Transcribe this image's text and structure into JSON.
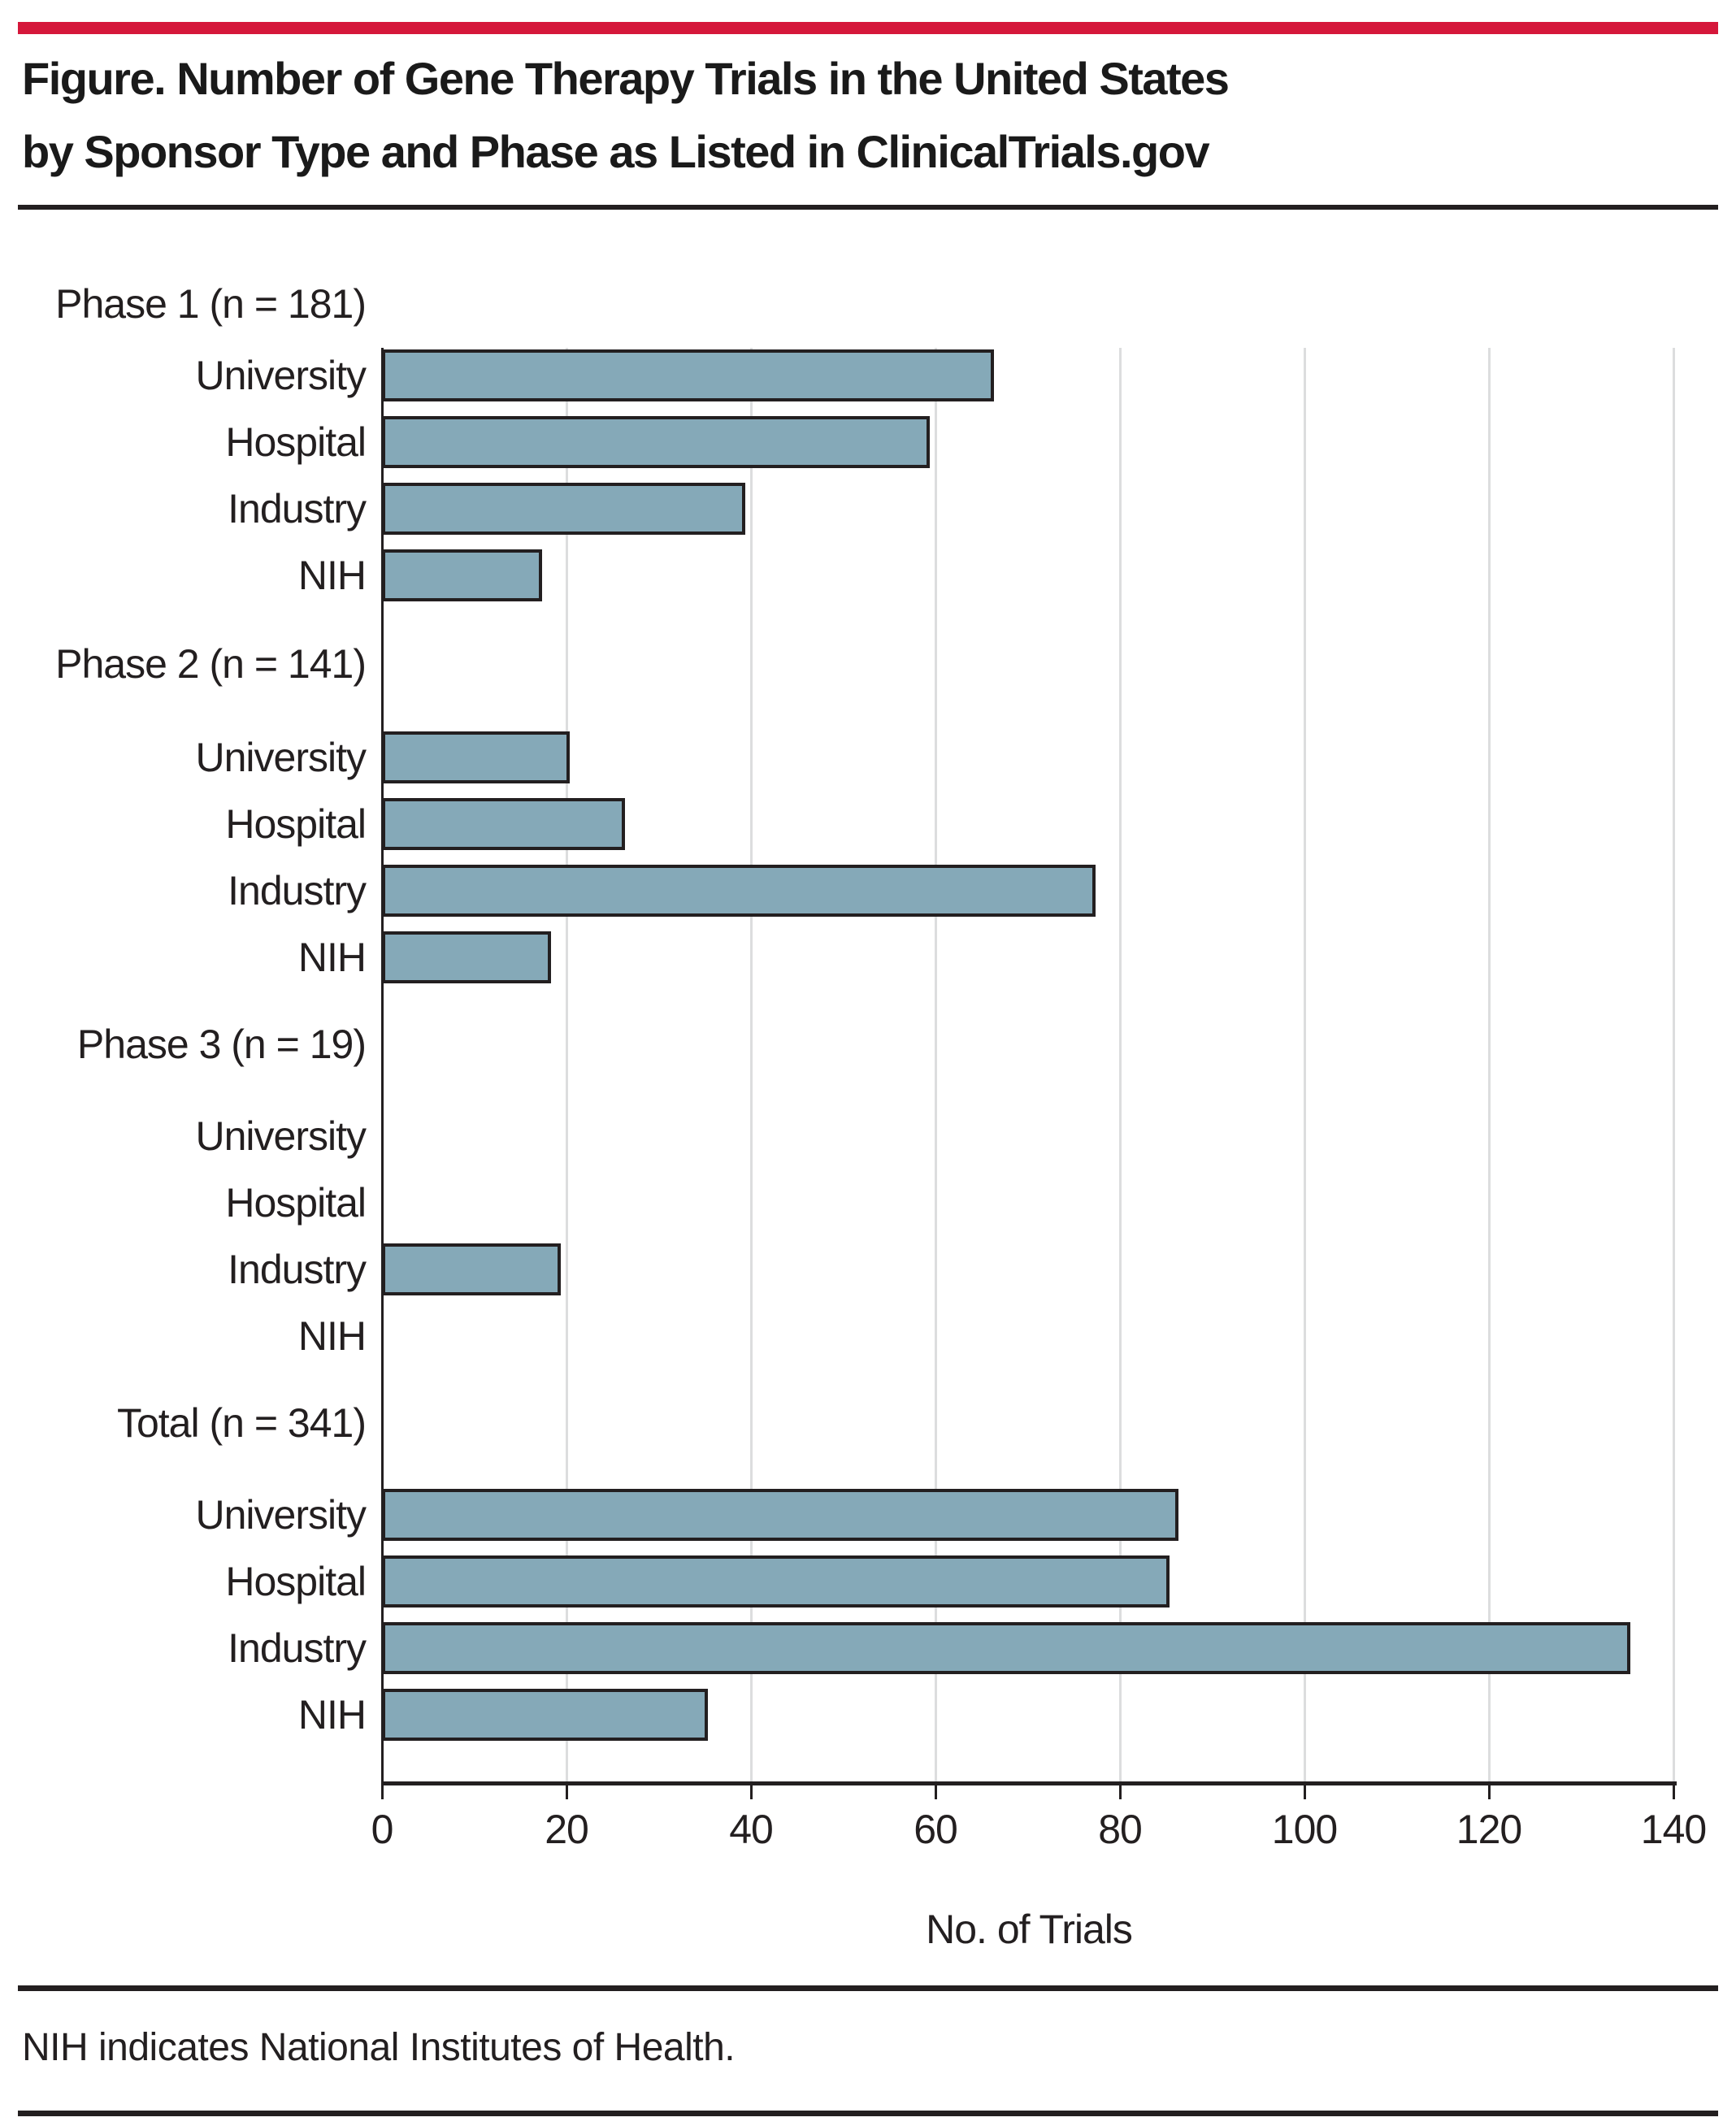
{
  "accent_color": "#D5173A",
  "bar_fill_color": "#85A9B8",
  "bar_border_color": "#231F20",
  "gridline_color": "#DCDDDE",
  "title": {
    "line1": "Figure. Number of Gene Therapy Trials in the United States",
    "line2": "by Sponsor Type and Phase as Listed in ClinicalTrials.gov"
  },
  "footnote": "NIH indicates National Institutes of Health.",
  "chart_data": {
    "type": "bar",
    "orientation": "horizontal",
    "title": "Figure. Number of Gene Therapy Trials in the United States by Sponsor Type and Phase as Listed in ClinicalTrials.gov",
    "xlabel": "No. of Trials",
    "xlim": [
      0,
      140
    ],
    "xticks": [
      0,
      20,
      40,
      60,
      80,
      100,
      120,
      140
    ],
    "grid": true,
    "legend": "none",
    "categories": [
      "University",
      "Hospital",
      "Industry",
      "NIH"
    ],
    "groups": [
      {
        "label": "Phase 1 (n = 181)",
        "values": [
          66,
          59,
          39,
          17
        ]
      },
      {
        "label": "Phase 2 (n = 141)",
        "values": [
          20,
          26,
          77,
          18
        ]
      },
      {
        "label": "Phase 3 (n = 19)",
        "values": [
          0,
          0,
          19,
          0
        ]
      },
      {
        "label": "Total (n = 341)",
        "values": [
          86,
          85,
          135,
          35
        ]
      }
    ]
  }
}
